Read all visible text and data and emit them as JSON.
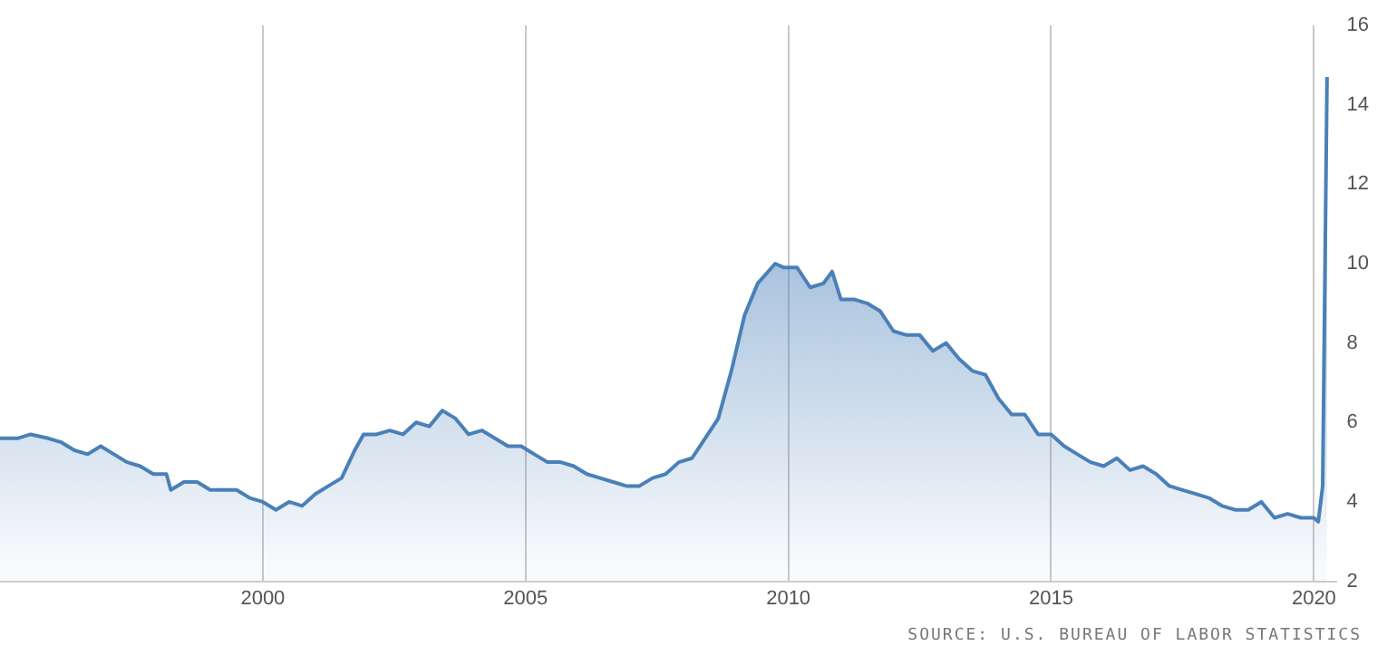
{
  "chart_data": {
    "type": "area",
    "x": [
      "1995-01",
      "1995-05",
      "1995-08",
      "1995-12",
      "1996-03",
      "1996-06",
      "1996-09",
      "1996-12",
      "1997-03",
      "1997-06",
      "1997-09",
      "1997-12",
      "1998-03",
      "1998-04",
      "1998-07",
      "1998-10",
      "1999-01",
      "1999-04",
      "1999-07",
      "1999-10",
      "2000-01",
      "2000-04",
      "2000-07",
      "2000-10",
      "2001-01",
      "2001-04",
      "2001-07",
      "2001-10",
      "2001-12",
      "2002-03",
      "2002-06",
      "2002-09",
      "2002-12",
      "2003-03",
      "2003-06",
      "2003-09",
      "2003-12",
      "2004-03",
      "2004-06",
      "2004-09",
      "2004-12",
      "2005-03",
      "2005-06",
      "2005-09",
      "2005-12",
      "2006-03",
      "2006-06",
      "2006-09",
      "2006-12",
      "2007-03",
      "2007-06",
      "2007-09",
      "2007-12",
      "2008-03",
      "2008-06",
      "2008-09",
      "2008-12",
      "2009-03",
      "2009-06",
      "2009-10",
      "2009-12",
      "2010-03",
      "2010-06",
      "2010-09",
      "2010-11",
      "2011-01",
      "2011-04",
      "2011-07",
      "2011-10",
      "2012-01",
      "2012-04",
      "2012-07",
      "2012-10",
      "2013-01",
      "2013-04",
      "2013-07",
      "2013-10",
      "2014-01",
      "2014-04",
      "2014-07",
      "2014-10",
      "2015-01",
      "2015-04",
      "2015-07",
      "2015-10",
      "2016-01",
      "2016-04",
      "2016-07",
      "2016-10",
      "2017-01",
      "2017-04",
      "2017-07",
      "2017-10",
      "2018-01",
      "2018-04",
      "2018-07",
      "2018-10",
      "2019-01",
      "2019-04",
      "2019-07",
      "2019-10",
      "2020-01",
      "2020-02",
      "2020-03",
      "2020-04"
    ],
    "values": [
      5.6,
      5.6,
      5.7,
      5.6,
      5.5,
      5.3,
      5.2,
      5.4,
      5.2,
      5.0,
      4.9,
      4.7,
      4.7,
      4.3,
      4.5,
      4.5,
      4.3,
      4.3,
      4.3,
      4.1,
      4.0,
      3.8,
      4.0,
      3.9,
      4.2,
      4.4,
      4.6,
      5.3,
      5.7,
      5.7,
      5.8,
      5.7,
      6.0,
      5.9,
      6.3,
      6.1,
      5.7,
      5.8,
      5.6,
      5.4,
      5.4,
      5.2,
      5.0,
      5.0,
      4.9,
      4.7,
      4.6,
      4.5,
      4.4,
      4.4,
      4.6,
      4.7,
      5.0,
      5.1,
      5.6,
      6.1,
      7.3,
      8.7,
      9.5,
      10.0,
      9.9,
      9.9,
      9.4,
      9.5,
      9.8,
      9.1,
      9.1,
      9.0,
      8.8,
      8.3,
      8.2,
      8.2,
      7.8,
      8.0,
      7.6,
      7.3,
      7.2,
      6.6,
      6.2,
      6.2,
      5.7,
      5.7,
      5.4,
      5.2,
      5.0,
      4.9,
      5.1,
      4.8,
      4.9,
      4.7,
      4.4,
      4.3,
      4.2,
      4.1,
      3.9,
      3.8,
      3.8,
      4.0,
      3.6,
      3.7,
      3.6,
      3.6,
      3.5,
      4.4,
      14.7
    ],
    "color": "#4a80b8",
    "xlim": [
      "1995-01",
      "2020-06"
    ],
    "xticks": [
      "2000",
      "2005",
      "2010",
      "2015",
      "2020"
    ],
    "ylim": [
      2,
      16
    ],
    "yticks": [
      2,
      4,
      6,
      8,
      10,
      12,
      14,
      16
    ],
    "grid": "x",
    "annotations": [
      "SOURCE: U.S. BUREAU OF LABOR STATISTICS"
    ]
  }
}
